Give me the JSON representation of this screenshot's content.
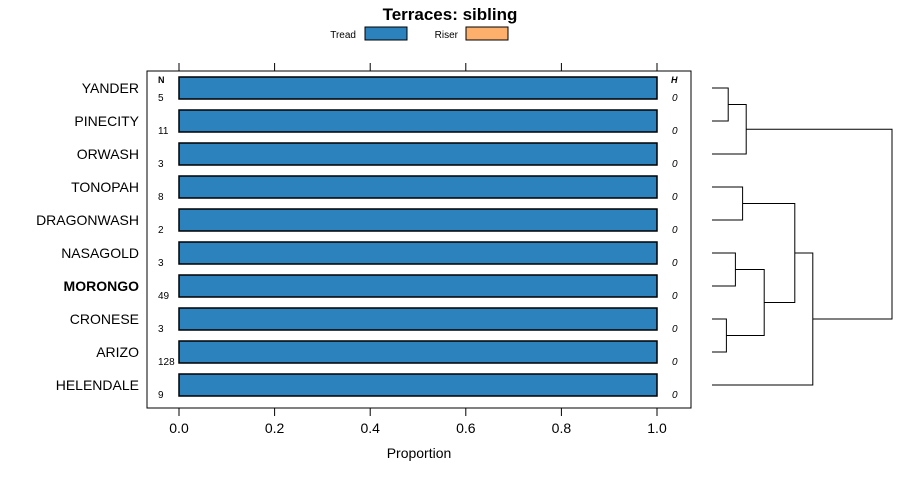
{
  "chart_data": {
    "type": "bar",
    "orientation": "horizontal",
    "stacked": true,
    "title": "Terraces: sibling",
    "xlabel": "Proportion",
    "xlim": [
      -0.06,
      1.06
    ],
    "xticks": [
      0.0,
      0.2,
      0.4,
      0.6,
      0.8,
      1.0
    ],
    "xtick_labels": [
      "0.0",
      "0.2",
      "0.4",
      "0.6",
      "0.8",
      "1.0"
    ],
    "legend": {
      "placement": "top-center",
      "entries": [
        {
          "name": "Tread",
          "color": "#2b82bd"
        },
        {
          "name": "Riser",
          "color": "#fdb06b"
        }
      ]
    },
    "n_header": "N",
    "h_header": "H",
    "highlight": "MORONGO",
    "categories": [
      "YANDER",
      "PINECITY",
      "ORWASH",
      "TONOPAH",
      "DRAGONWASH",
      "NASAGOLD",
      "MORONGO",
      "CRONESE",
      "ARIZO",
      "HELENDALE"
    ],
    "n_values": [
      "5",
      "11",
      "3",
      "8",
      "2",
      "3",
      "49",
      "3",
      "128",
      "9"
    ],
    "h_values": [
      "0",
      "0",
      "0",
      "0",
      "0",
      "0",
      "0",
      "0",
      "0",
      "0"
    ],
    "series": [
      {
        "name": "Tread",
        "color": "#2b82bd",
        "values": [
          1,
          1,
          1,
          1,
          1,
          1,
          1,
          1,
          1,
          1
        ]
      },
      {
        "name": "Riser",
        "color": "#fdb06b",
        "values": [
          0,
          0,
          0,
          0,
          0,
          0,
          0,
          0,
          0,
          0
        ]
      }
    ],
    "dendrogram": {
      "merges": [
        {
          "a": "YANDER",
          "b": "PINECITY",
          "height": 0.09
        },
        {
          "a": "CRONESE",
          "b": "ARIZO",
          "height": 0.08
        },
        {
          "a": "NASAGOLD",
          "b": "MORONGO",
          "height": 0.13
        },
        {
          "a": "TONOPAH",
          "b": "DRAGONWASH",
          "height": 0.17
        },
        {
          "a": "YANDER+PINECITY",
          "b": "ORWASH",
          "height": 0.19
        },
        {
          "a": "NASAGOLD+MORONGO",
          "b": "CRONESE+ARIZO",
          "height": 0.29
        },
        {
          "a": "TONOPAH+DRAGONWASH",
          "b": "NASAGOLD+MORONGO+CRONESE+ARIZO",
          "height": 0.46
        },
        {
          "a": "TONOPAH+DRAGONWASH+NASAGOLD+MORONGO+CRONESE+ARIZO",
          "b": "HELENDALE",
          "height": 0.56
        },
        {
          "a": "YANDER+PINECITY+ORWASH",
          "b": "TONOPAH+DRAGONWASH+NASAGOLD+MORONGO+CRONESE+ARIZO+HELENDALE",
          "height": 1.0
        }
      ]
    }
  }
}
